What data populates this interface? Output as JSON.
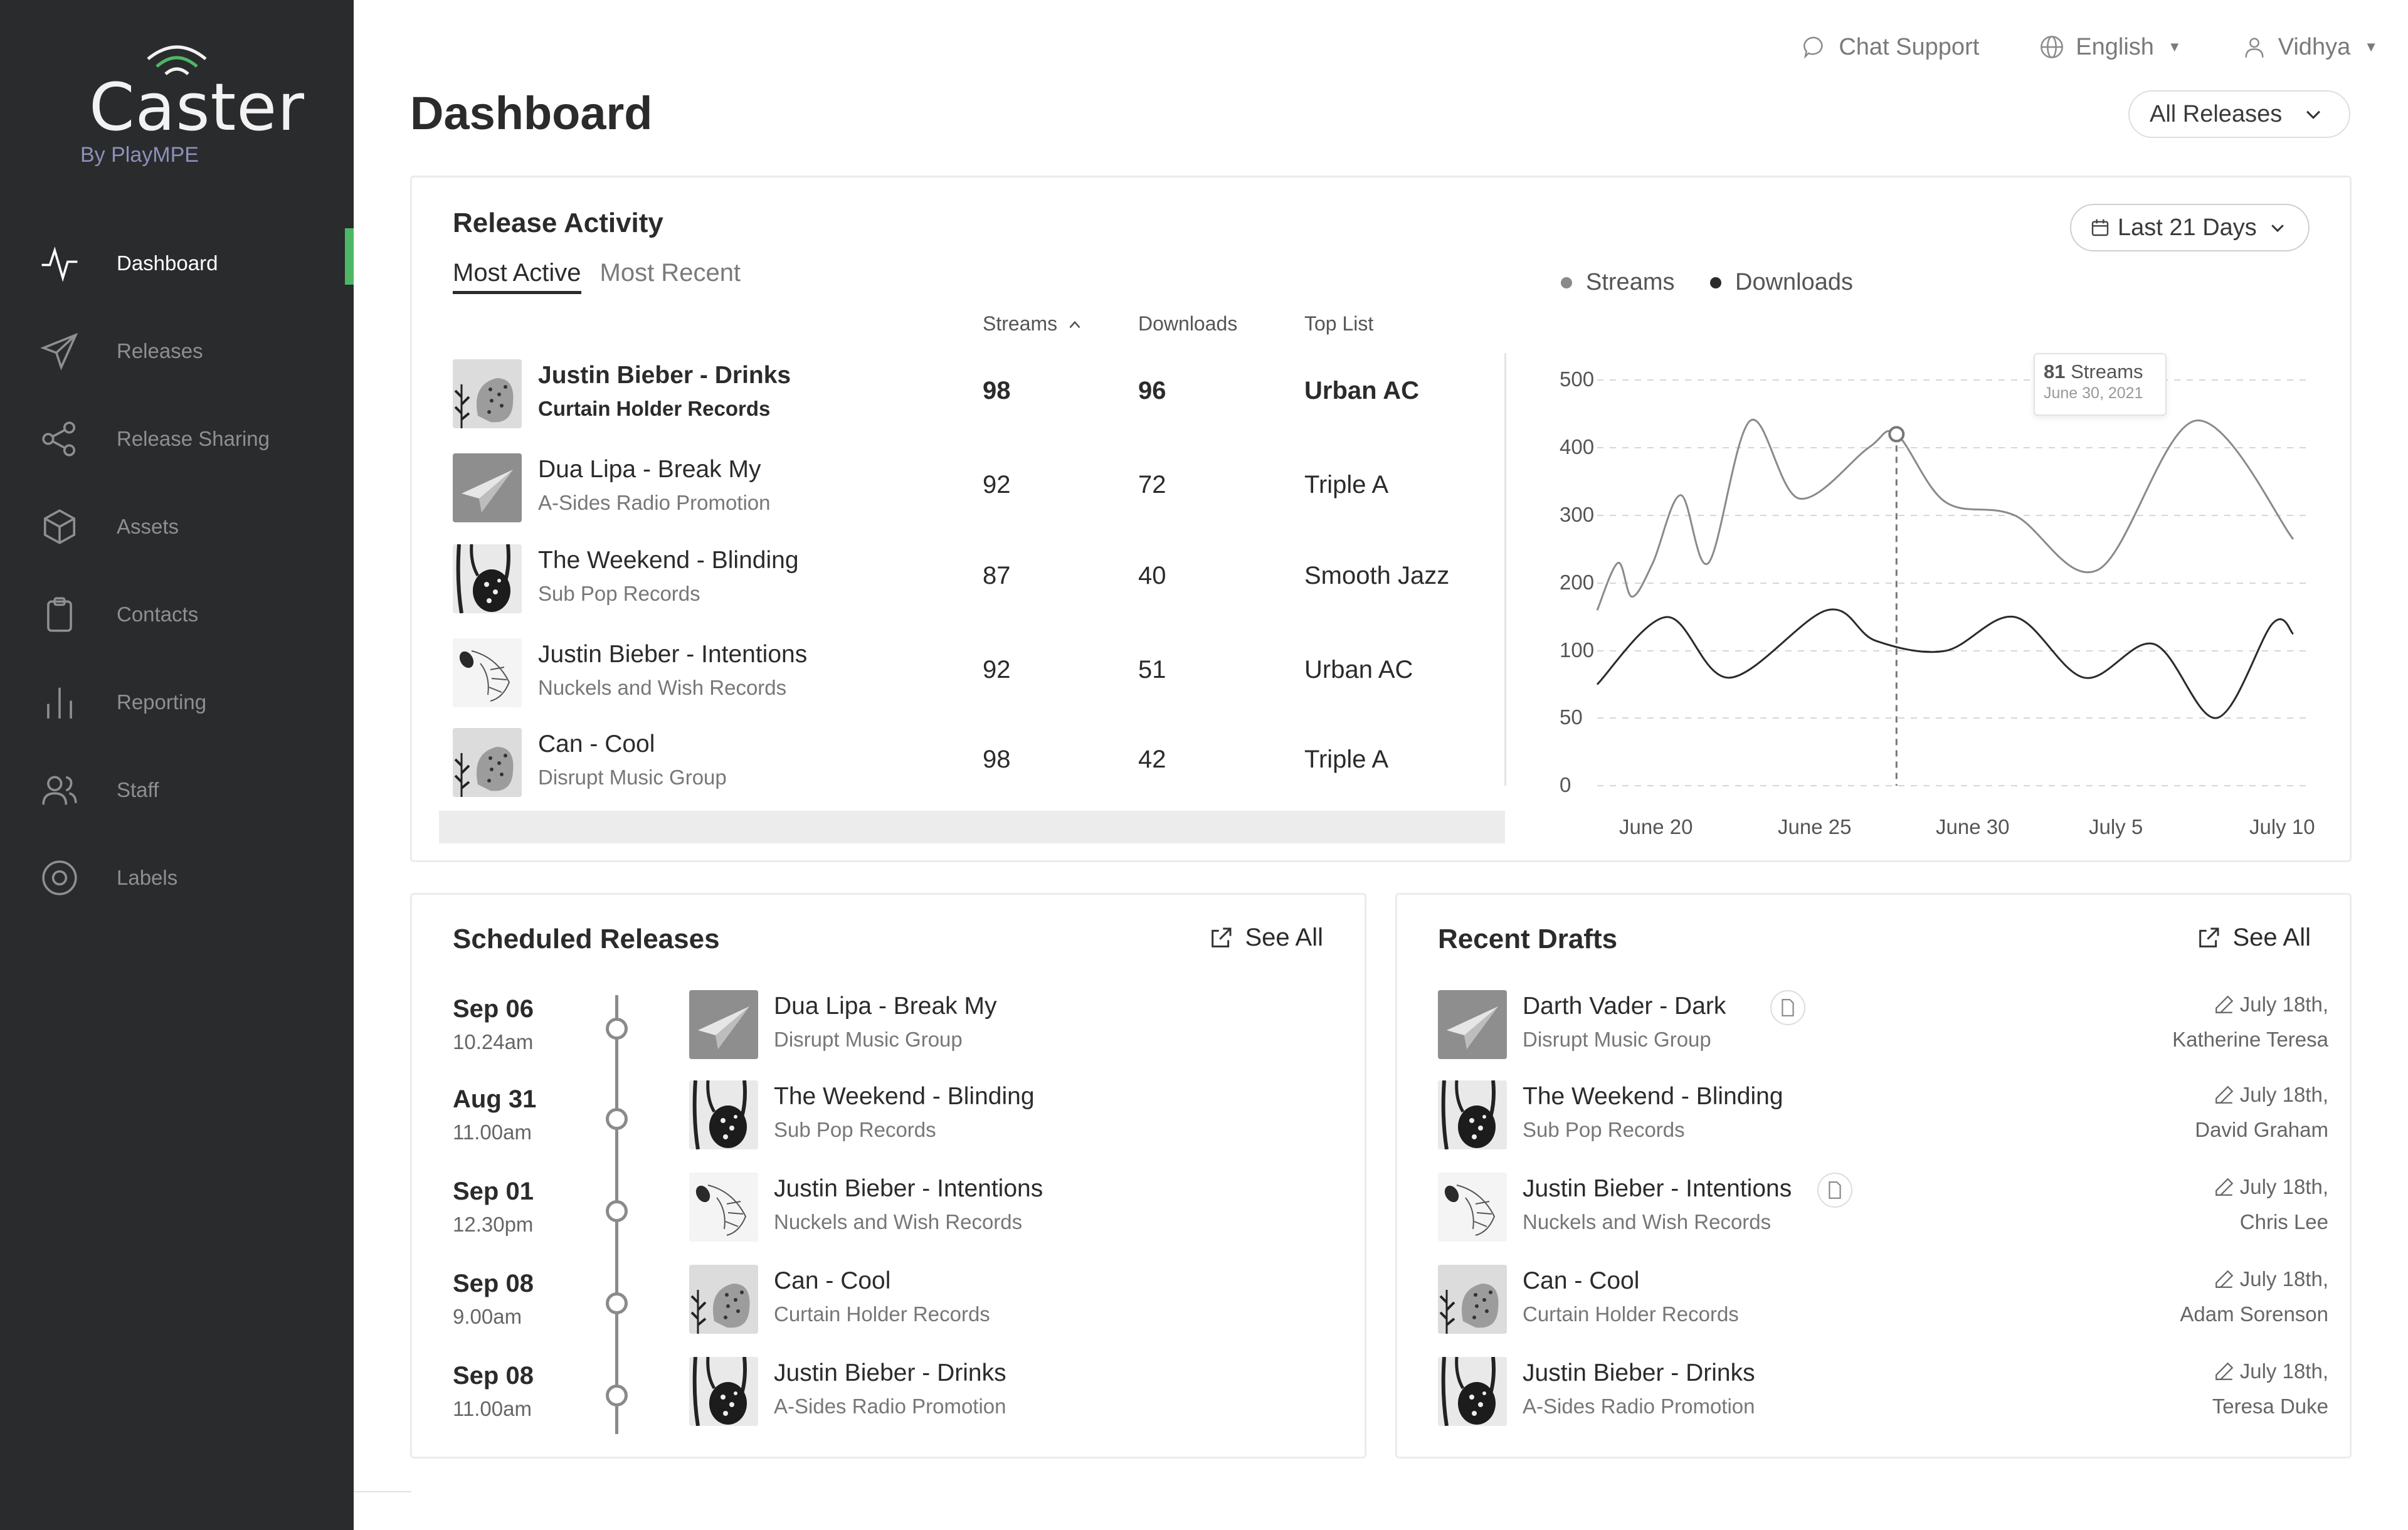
{
  "brand": {
    "name": "Caster",
    "sub": "By PlayMPE"
  },
  "sidebar": {
    "items": [
      {
        "label": "Dashboard",
        "icon": "activity-icon",
        "active": true
      },
      {
        "label": "Releases",
        "icon": "paper-plane-icon"
      },
      {
        "label": "Release Sharing",
        "icon": "share-icon"
      },
      {
        "label": "Assets",
        "icon": "box-icon"
      },
      {
        "label": "Contacts",
        "icon": "clipboard-icon"
      },
      {
        "label": "Reporting",
        "icon": "bar-chart-icon"
      },
      {
        "label": "Staff",
        "icon": "users-icon"
      },
      {
        "label": "Labels",
        "icon": "target-icon"
      }
    ]
  },
  "topbar": {
    "chat": "Chat Support",
    "language": "English",
    "user": "Vidhya"
  },
  "page": {
    "title": "Dashboard",
    "filter": "All Releases"
  },
  "activity": {
    "title": "Release Activity",
    "tabs": [
      "Most Active",
      "Most Recent"
    ],
    "columns": {
      "streams": "Streams",
      "downloads": "Downloads",
      "toplist": "Top List"
    },
    "rows": [
      {
        "title": "Justin Bieber - Drinks",
        "label": "Curtain Holder Records",
        "streams": "98",
        "downloads": "96",
        "toplist": "Urban AC",
        "art": "dots"
      },
      {
        "title": "Dua Lipa - Break My",
        "label": "A-Sides Radio Promotion",
        "streams": "92",
        "downloads": "72",
        "toplist": "Triple A",
        "art": "plane"
      },
      {
        "title": "The Weekend - Blinding",
        "label": "Sub Pop Records",
        "streams": "87",
        "downloads": "40",
        "toplist": "Smooth Jazz",
        "art": "leaf"
      },
      {
        "title": "Justin Bieber - Intentions",
        "label": "Nuckels and Wish Records",
        "streams": "92",
        "downloads": "51",
        "toplist": "Urban AC",
        "art": "sketch"
      },
      {
        "title": "Can - Cool",
        "label": "Disrupt Music Group",
        "streams": "98",
        "downloads": "42",
        "toplist": "Triple A",
        "art": "dots"
      }
    ],
    "range": "Last 21 Days"
  },
  "chart_data": {
    "type": "line",
    "x_ticks": [
      "June 20",
      "June 25",
      "June 30",
      "July 5",
      "July 10"
    ],
    "y_ticks": [
      "500",
      "400",
      "300",
      "200",
      "100",
      "50",
      "0"
    ],
    "series": [
      {
        "name": "Streams",
        "color": "#8a8a8a",
        "points": [
          [
            0,
            160
          ],
          [
            0.03,
            230
          ],
          [
            0.05,
            180
          ],
          [
            0.08,
            230
          ],
          [
            0.12,
            330
          ],
          [
            0.16,
            230
          ],
          [
            0.22,
            440
          ],
          [
            0.29,
            325
          ],
          [
            0.39,
            400
          ],
          [
            0.43,
            420
          ],
          [
            0.5,
            320
          ],
          [
            0.6,
            300
          ],
          [
            0.72,
            220
          ],
          [
            0.86,
            440
          ],
          [
            1.0,
            265
          ]
        ]
      },
      {
        "name": "Downloads",
        "color": "#2b2b2b",
        "points": [
          [
            0,
            75
          ],
          [
            0.1,
            150
          ],
          [
            0.19,
            80
          ],
          [
            0.33,
            160
          ],
          [
            0.4,
            115
          ],
          [
            0.5,
            100
          ],
          [
            0.6,
            150
          ],
          [
            0.7,
            80
          ],
          [
            0.8,
            110
          ],
          [
            0.89,
            50
          ],
          [
            0.97,
            140
          ],
          [
            1.0,
            125
          ]
        ]
      }
    ],
    "tooltip": {
      "value": "81",
      "label": "Streams",
      "date": "June 30, 2021"
    }
  },
  "scheduled": {
    "title": "Scheduled Releases",
    "see_all": "See All",
    "items": [
      {
        "date": "Sep 06",
        "time": "10.24am",
        "title": "Dua Lipa - Break My",
        "label": "Disrupt Music Group",
        "art": "plane"
      },
      {
        "date": "Aug 31",
        "time": "11.00am",
        "title": "The Weekend - Blinding",
        "label": "Sub Pop Records",
        "art": "leaf"
      },
      {
        "date": "Sep 01",
        "time": "12.30pm",
        "title": "Justin Bieber - Intentions",
        "label": "Nuckels and Wish Records",
        "art": "sketch"
      },
      {
        "date": "Sep 08",
        "time": "9.00am",
        "title": "Can - Cool",
        "label": "Curtain Holder Records",
        "art": "dots"
      },
      {
        "date": "Sep 08",
        "time": "11.00am",
        "title": "Justin Bieber - Drinks",
        "label": "A-Sides Radio Promotion",
        "art": "leaf"
      }
    ]
  },
  "drafts": {
    "title": "Recent Drafts",
    "see_all": "See All",
    "items": [
      {
        "title": "Darth Vader - Dark",
        "label": "Disrupt Music Group",
        "date": "July 18th,",
        "author": "Katherine Teresa",
        "doc": true,
        "art": "plane"
      },
      {
        "title": "The Weekend - Blinding",
        "label": "Sub Pop Records",
        "date": "July 18th,",
        "author": "David Graham",
        "doc": false,
        "art": "leaf"
      },
      {
        "title": "Justin Bieber - Intentions",
        "label": "Nuckels and Wish Records",
        "date": "July 18th,",
        "author": "Chris Lee",
        "doc": true,
        "art": "sketch"
      },
      {
        "title": "Can - Cool",
        "label": "Curtain Holder Records",
        "date": "July 18th,",
        "author": "Adam Sorenson",
        "doc": false,
        "art": "dots"
      },
      {
        "title": "Justin Bieber - Drinks",
        "label": "A-Sides Radio Promotion",
        "date": "July 18th,",
        "author": "Teresa Duke",
        "doc": false,
        "art": "leaf"
      }
    ]
  }
}
